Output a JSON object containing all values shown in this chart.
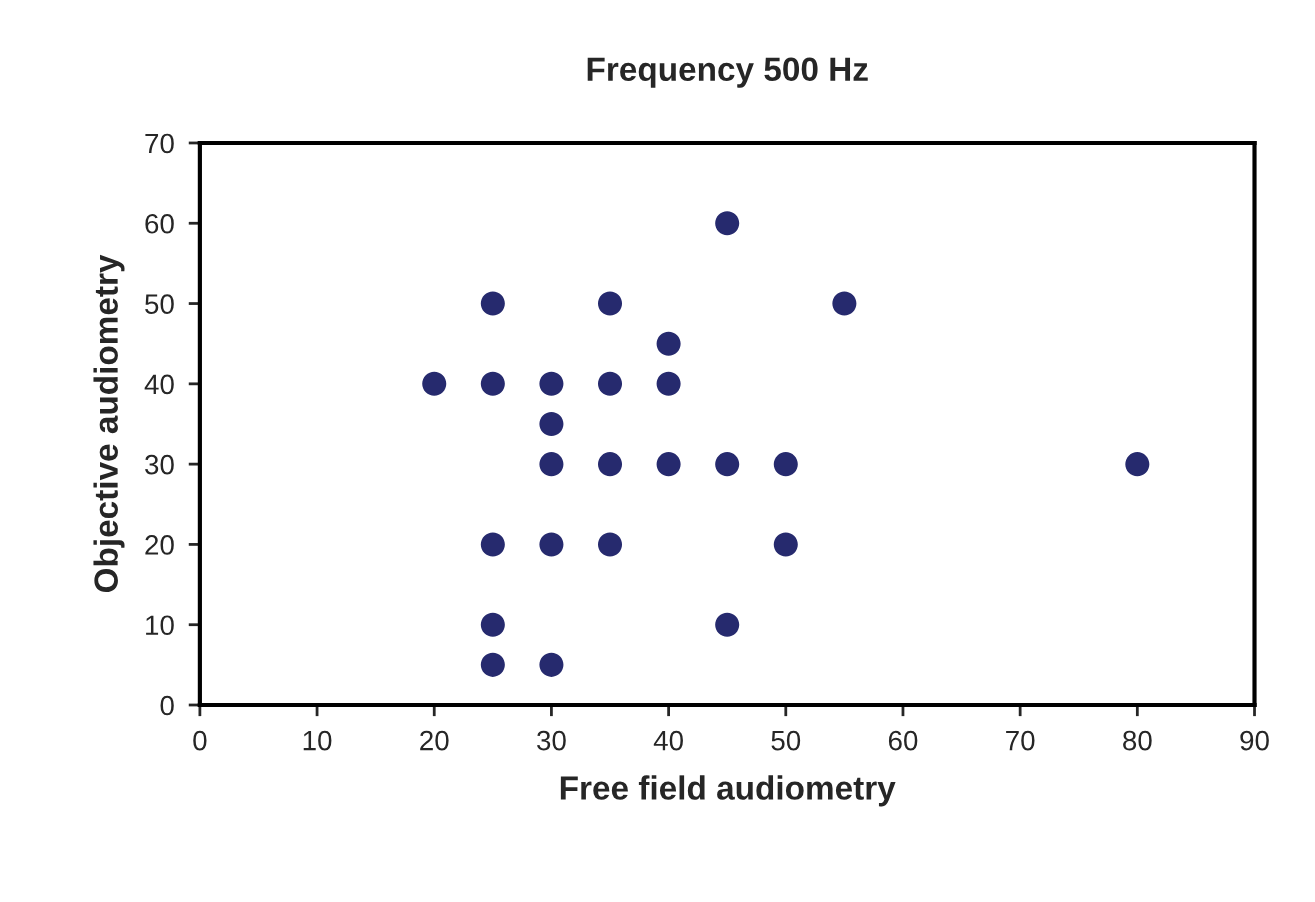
{
  "chart_data": {
    "type": "scatter",
    "title": "Frequency 500 Hz",
    "xlabel": "Free field audiometry",
    "ylabel": "Objective audiometry",
    "x": [
      45,
      25,
      35,
      55,
      40,
      20,
      25,
      30,
      35,
      40,
      30,
      30,
      35,
      40,
      45,
      50,
      80,
      25,
      30,
      35,
      50,
      25,
      45,
      25,
      30
    ],
    "values": [
      60,
      50,
      50,
      50,
      45,
      40,
      40,
      40,
      40,
      40,
      35,
      30,
      30,
      30,
      30,
      30,
      30,
      20,
      20,
      20,
      20,
      10,
      10,
      5,
      5
    ],
    "color": "#262a6e",
    "marker": "circle",
    "xlim": [
      0,
      90
    ],
    "xticks": [
      0,
      10,
      20,
      30,
      40,
      50,
      60,
      70,
      80,
      90
    ],
    "ylim": [
      0,
      70
    ],
    "yticks": [
      0,
      10,
      20,
      30,
      40,
      50,
      60,
      70
    ],
    "grid": false,
    "legend": false
  }
}
